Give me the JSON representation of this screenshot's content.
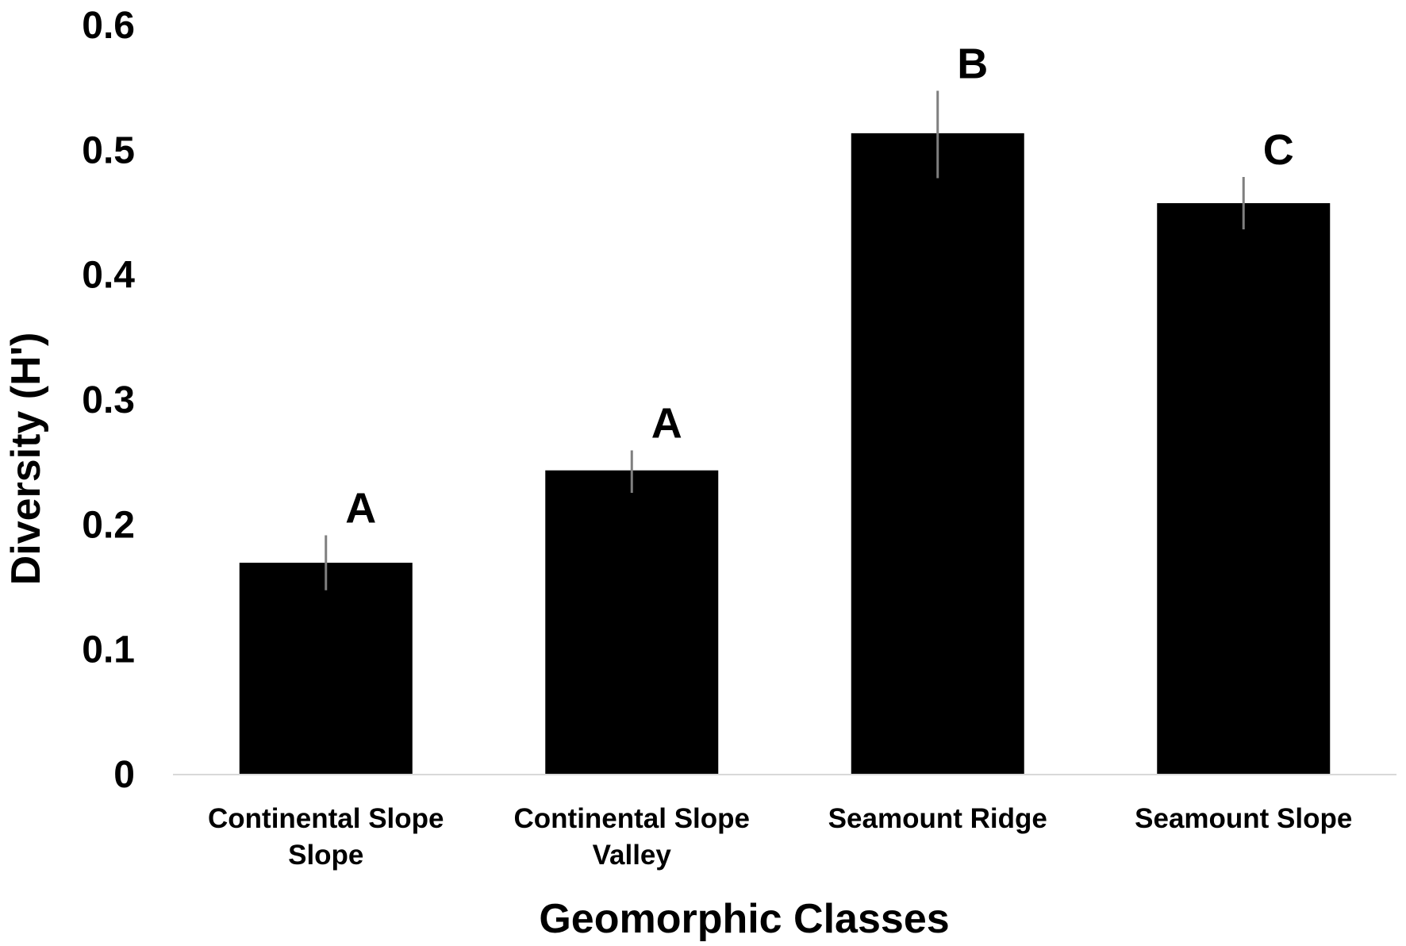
{
  "chart_data": {
    "type": "bar",
    "title": "",
    "xlabel": "Geomorphic Classes",
    "ylabel": "Diversity (H')",
    "ylim": [
      0,
      0.6
    ],
    "yticks": [
      0,
      0.1,
      0.2,
      0.3,
      0.4,
      0.5,
      0.6
    ],
    "ytick_labels": [
      "0",
      "0.1",
      "0.2",
      "0.3",
      "0.4",
      "0.5",
      "0.6"
    ],
    "grid": false,
    "legend": "none",
    "bar_color": "#000000",
    "error_bar_color": "#7f7f7f",
    "axis_color": "#d9d9d9",
    "categories": [
      [
        "Continental Slope",
        "Slope"
      ],
      [
        "Continental Slope",
        "Valley"
      ],
      [
        "Seamount Ridge"
      ],
      [
        "Seamount Slope"
      ]
    ],
    "values": [
      0.169,
      0.243,
      0.513,
      0.457
    ],
    "error_low": [
      0.147,
      0.225,
      0.477,
      0.436
    ],
    "error_high": [
      0.191,
      0.259,
      0.547,
      0.478
    ],
    "significance_labels": [
      "A",
      "A",
      "B",
      "C"
    ]
  }
}
